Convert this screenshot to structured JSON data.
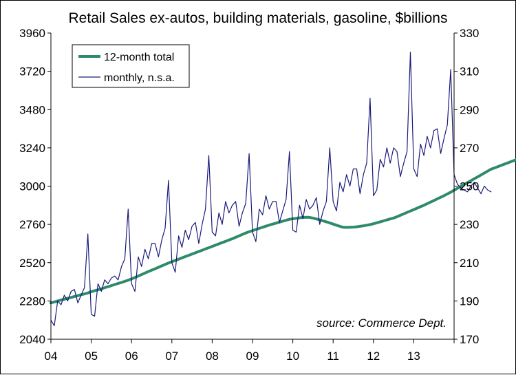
{
  "chart_data": {
    "type": "line",
    "title": "Retail Sales ex-autos, building materials, gasoline, $billions",
    "annotation": "source: Commerce Dept.",
    "x_tick_labels": [
      "04",
      "05",
      "06",
      "07",
      "08",
      "09",
      "10",
      "11",
      "12",
      "13"
    ],
    "x_range_year": [
      2004.0,
      2014.0
    ],
    "y_left": {
      "ticks": [
        2040,
        2280,
        2520,
        2760,
        3000,
        3240,
        3480,
        3720,
        3960
      ],
      "range": [
        2040,
        3960
      ]
    },
    "y_right": {
      "ticks": [
        170,
        190,
        210,
        230,
        250,
        270,
        290,
        310,
        330
      ],
      "range": [
        170,
        330
      ]
    },
    "grid": false,
    "legend": {
      "placement": "top-left",
      "entries": [
        "12-month total",
        "monthly, n.s.a."
      ]
    },
    "colors": {
      "total": "#2e8b6a",
      "monthly": "#1a1a7a"
    },
    "series": [
      {
        "name": "12-month total",
        "axis": "left",
        "start": "2004-01",
        "values": [
          2268,
          2274,
          2280,
          2286,
          2291,
          2297,
          2302,
          2308,
          2313,
          2319,
          2324,
          2330,
          2338,
          2344,
          2350,
          2356,
          2363,
          2369,
          2376,
          2383,
          2390,
          2396,
          2403,
          2410,
          2418,
          2427,
          2436,
          2445,
          2455,
          2464,
          2473,
          2482,
          2491,
          2500,
          2509,
          2518,
          2526,
          2534,
          2542,
          2550,
          2558,
          2566,
          2574,
          2582,
          2590,
          2598,
          2606,
          2614,
          2622,
          2630,
          2638,
          2646,
          2654,
          2662,
          2670,
          2679,
          2688,
          2697,
          2706,
          2714,
          2721,
          2728,
          2735,
          2742,
          2749,
          2756,
          2762,
          2768,
          2774,
          2780,
          2786,
          2792,
          2795,
          2798,
          2801,
          2804,
          2805,
          2804,
          2800,
          2794,
          2788,
          2782,
          2776,
          2769,
          2762,
          2755,
          2748,
          2742,
          2741,
          2742,
          2743,
          2745,
          2748,
          2751,
          2755,
          2759,
          2764,
          2770,
          2776,
          2782,
          2788,
          2794,
          2800,
          2808,
          2817,
          2826,
          2835,
          2844,
          2853,
          2862,
          2871,
          2880,
          2890,
          2900,
          2910,
          2920,
          2930,
          2940,
          2951,
          2962,
          2974,
          2986,
          2998,
          3010,
          3022,
          3034,
          3046,
          3058,
          3070,
          3082,
          3094,
          3106,
          3114,
          3122,
          3130,
          3138,
          3146,
          3154,
          3162,
          3170,
          3176,
          3178,
          3178
        ]
      },
      {
        "name": "monthly, n.s.a.",
        "axis": "right",
        "start": "2004-01",
        "values": [
          180,
          177,
          190,
          188,
          193,
          190,
          195,
          196,
          189,
          193,
          197,
          225,
          183,
          182,
          199,
          195,
          201,
          199,
          202,
          203,
          201,
          208,
          212,
          238,
          199,
          195,
          213,
          208,
          217,
          212,
          220,
          220,
          213,
          222,
          228,
          253,
          210,
          205,
          224,
          218,
          227,
          222,
          229,
          231,
          220,
          230,
          238,
          266,
          226,
          224,
          236,
          230,
          242,
          236,
          240,
          242,
          229,
          236,
          241,
          267,
          226,
          221,
          238,
          235,
          245,
          238,
          242,
          242,
          231,
          237,
          243,
          268,
          227,
          226,
          240,
          233,
          243,
          238,
          240,
          244,
          230,
          237,
          242,
          270,
          242,
          237,
          252,
          247,
          256,
          250,
          259,
          259,
          246,
          256,
          262,
          296,
          245,
          248,
          264,
          260,
          270,
          262,
          270,
          268,
          255,
          262,
          268,
          320,
          259,
          255,
          272,
          266,
          276,
          270,
          279,
          280,
          267,
          275,
          282,
          311,
          256,
          251,
          249,
          248,
          247,
          250,
          252,
          249,
          246,
          250,
          248,
          247
        ]
      }
    ]
  }
}
